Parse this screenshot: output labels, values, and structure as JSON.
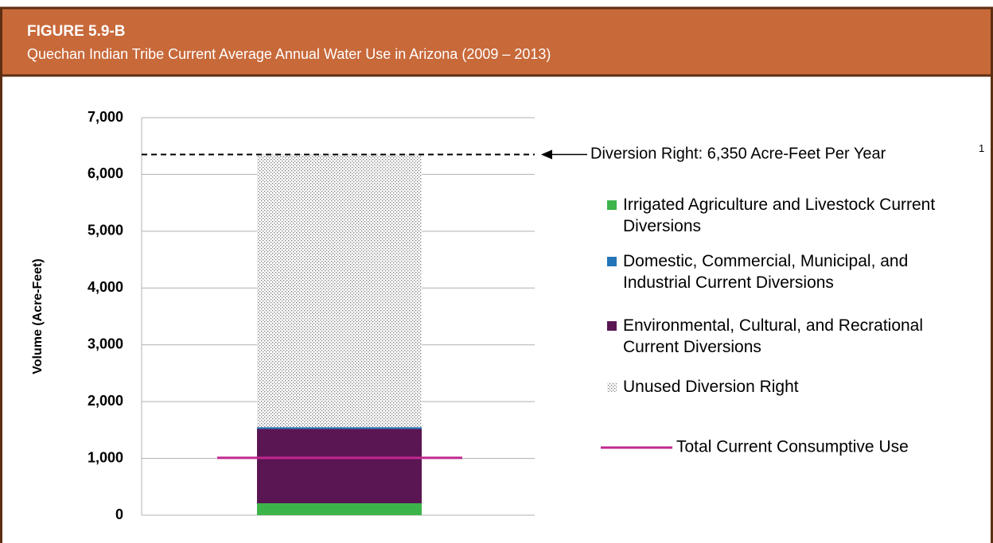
{
  "header": {
    "figure": "FIGURE 5.9-B",
    "title": "Quechan Indian Tribe Current Average Annual Water Use in Arizona (2009 – 2013)"
  },
  "chart_data": {
    "type": "stacked-bar",
    "ylabel": "Volume (Acre-Feet)",
    "categories": [
      null
    ],
    "series": [
      {
        "name": "Irrigated Agriculture and Livestock Current Diversions",
        "color": "#3cb44a",
        "values": [
          210
        ]
      },
      {
        "name": "Environmental, Cultural, and Recrational Current Diversions",
        "color": "#5a1553",
        "values": [
          1310
        ]
      },
      {
        "name": "Domestic, Commercial, Municipal, and Industrial Current Diversions",
        "color": "#2475b8",
        "values": [
          30
        ]
      },
      {
        "name": "Unused Diversion Right",
        "color": "dotted",
        "values": [
          4800
        ]
      }
    ],
    "legend_order": [
      0,
      2,
      1,
      3
    ],
    "total_line": {
      "name": "Total Current Consumptive Use",
      "color": "#c0288f",
      "value": 1010
    },
    "diversion_right": {
      "value": 6350,
      "label": "Diversion Right: 6,350 Acre-Feet Per Year",
      "footnote": "1"
    },
    "ylim": [
      0,
      7000
    ],
    "yticks": [
      0,
      {
        "value": 1000,
        "label": "1,000"
      },
      {
        "value": 2000,
        "label": "2,000"
      },
      {
        "value": 3000,
        "label": "3,000"
      },
      {
        "value": 4000,
        "label": "4,000"
      },
      {
        "value": 5000,
        "label": "5,000"
      },
      {
        "value": 6000,
        "label": "6,000"
      },
      {
        "value": 7000,
        "label": "7,000"
      }
    ],
    "grid": true
  }
}
